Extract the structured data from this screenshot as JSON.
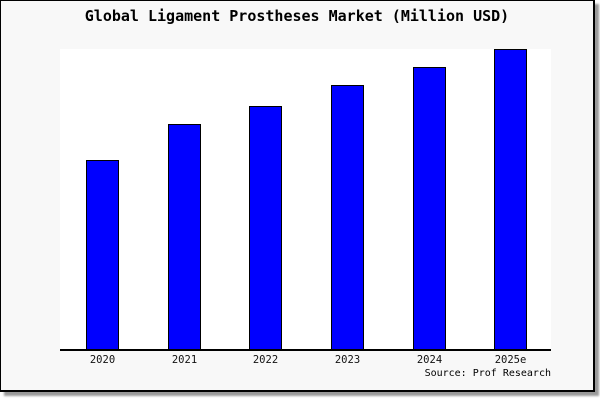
{
  "chart_data": {
    "type": "bar",
    "title": "Global Ligament Prostheses Market (Million USD)",
    "categories": [
      "2020",
      "2021",
      "2022",
      "2023",
      "2024",
      "2025e"
    ],
    "values": [
      63,
      75,
      81,
      88,
      94,
      100
    ],
    "values_note": "No numeric y-axis, gridlines or data labels are shown; values are estimated bar heights as a percentage of the tallest (2025e) bar.",
    "xlabel": "",
    "ylabel": "",
    "ylim": [
      0,
      100
    ],
    "grid": false,
    "legend": false,
    "bar_fill": "#0000ff",
    "bar_border": "#000000"
  },
  "source": {
    "label": "Source: Prof Research"
  },
  "colors": {
    "background": "#f8f8f8",
    "plot_background": "#ffffff",
    "axis": "#000000",
    "title_text": "#000000",
    "frame_border": "#000000",
    "shadow": "#999999"
  }
}
